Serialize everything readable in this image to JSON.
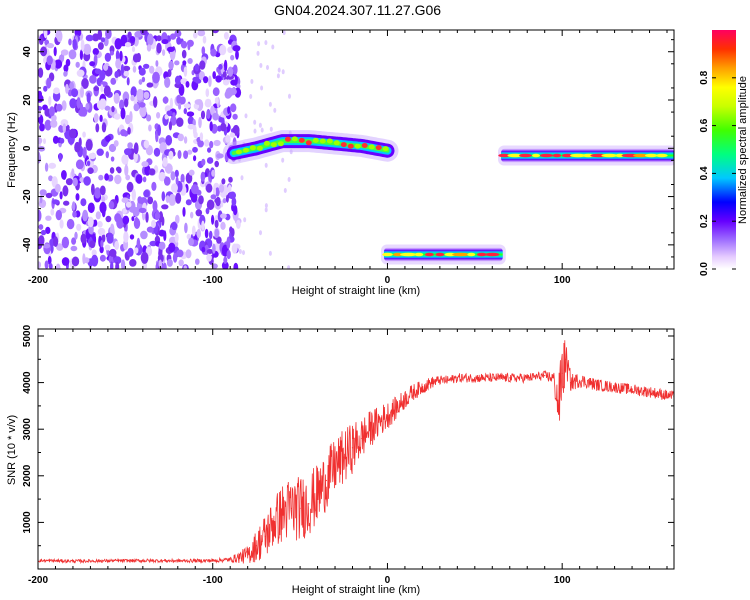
{
  "title": "GN04.2024.307.11.27.G06",
  "chart_data": [
    {
      "type": "heatmap",
      "xlabel": "Height of straight line (km)",
      "ylabel": "Frequency (Hz)",
      "xlim": [
        -200,
        164
      ],
      "ylim": [
        -50,
        49
      ],
      "x_ticks": [
        -200,
        -100,
        0,
        100
      ],
      "y_ticks": [
        -40,
        -20,
        0,
        20,
        40
      ],
      "colorbar": {
        "label": "Normalized spectral amplitude",
        "range": [
          0,
          1
        ],
        "ticks": [
          0.0,
          0.2,
          0.4,
          0.6,
          0.8
        ],
        "colormap": [
          "#ffffff",
          "#e6ccff",
          "#a070ff",
          "#6600ff",
          "#0000ff",
          "#00c8ff",
          "#00ff80",
          "#40ff00",
          "#c8ff00",
          "#ffff00",
          "#ffa000",
          "#ff3000",
          "#ff0060"
        ]
      },
      "features": [
        {
          "name": "noise",
          "x_range": [
            -200,
            -85
          ],
          "y_range": [
            -50,
            49
          ],
          "amplitude": 0.15
        },
        {
          "name": "curved trace",
          "x_range": [
            -88,
            0
          ],
          "points": [
            [
              -88,
              -2
            ],
            [
              -75,
              0
            ],
            [
              -60,
              3
            ],
            [
              -45,
              3
            ],
            [
              -30,
              2
            ],
            [
              -15,
              1
            ],
            [
              0,
              -1
            ]
          ],
          "amplitude": 0.7
        },
        {
          "name": "low trace",
          "x_range": [
            -2,
            66
          ],
          "y": -44,
          "amplitude": 0.85
        },
        {
          "name": "right trace",
          "x_range": [
            65,
            164
          ],
          "y": -3,
          "amplitude": 0.9
        }
      ]
    },
    {
      "type": "line",
      "xlabel": "Height of straight line (km)",
      "ylabel": "SNR (10 * v/v)",
      "xlim": [
        -200,
        164
      ],
      "ylim": [
        0,
        5150
      ],
      "x_ticks": [
        -200,
        -100,
        0,
        100
      ],
      "y_ticks": [
        1000,
        2000,
        3000,
        4000,
        5000
      ],
      "series": [
        {
          "color": "#f03030",
          "x": [
            -200,
            -180,
            -160,
            -140,
            -120,
            -100,
            -90,
            -80,
            -75,
            -70,
            -65,
            -60,
            -55,
            -50,
            -45,
            -40,
            -35,
            -30,
            -25,
            -20,
            -15,
            -10,
            -5,
            0,
            5,
            10,
            15,
            20,
            25,
            30,
            35,
            40,
            50,
            60,
            70,
            80,
            90,
            95,
            98,
            100,
            102,
            105,
            110,
            120,
            130,
            140,
            150,
            164
          ],
          "y": [
            180,
            170,
            175,
            180,
            175,
            180,
            200,
            300,
            500,
            700,
            1000,
            1200,
            1300,
            1300,
            1400,
            1600,
            1900,
            2200,
            2400,
            2600,
            2800,
            3000,
            3150,
            3300,
            3450,
            3650,
            3800,
            3900,
            4000,
            4050,
            4050,
            4100,
            4100,
            4100,
            4100,
            4100,
            4150,
            4100,
            3500,
            4200,
            4500,
            4000,
            4050,
            3950,
            3900,
            3850,
            3800,
            3700
          ],
          "noise_amplitude": [
            35,
            35,
            35,
            35,
            35,
            40,
            50,
            200,
            350,
            500,
            550,
            650,
            700,
            700,
            700,
            650,
            650,
            600,
            600,
            550,
            450,
            400,
            350,
            300,
            250,
            220,
            180,
            150,
            130,
            100,
            100,
            100,
            100,
            100,
            100,
            100,
            100,
            150,
            600,
            900,
            400,
            200,
            150,
            130,
            120,
            120,
            120,
            120
          ]
        }
      ]
    }
  ]
}
